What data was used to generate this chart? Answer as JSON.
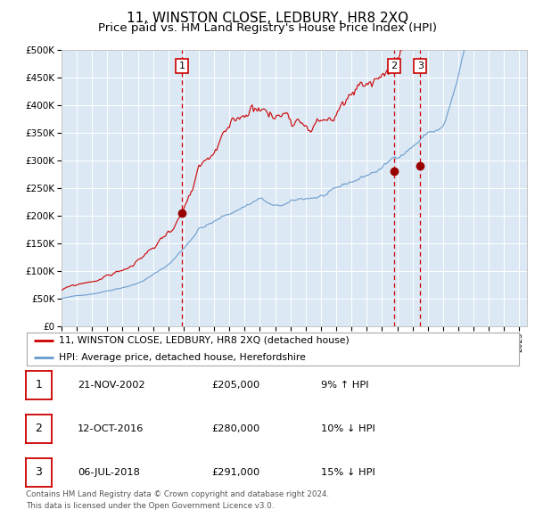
{
  "title": "11, WINSTON CLOSE, LEDBURY, HR8 2XQ",
  "subtitle": "Price paid vs. HM Land Registry's House Price Index (HPI)",
  "legend_line1": "11, WINSTON CLOSE, LEDBURY, HR8 2XQ (detached house)",
  "legend_line2": "HPI: Average price, detached house, Herefordshire",
  "footer1": "Contains HM Land Registry data © Crown copyright and database right 2024.",
  "footer2": "This data is licensed under the Open Government Licence v3.0.",
  "table": [
    {
      "num": "1",
      "date": "21-NOV-2002",
      "price": "£205,000",
      "hpi": "9% ↑ HPI"
    },
    {
      "num": "2",
      "date": "12-OCT-2016",
      "price": "£280,000",
      "hpi": "10% ↓ HPI"
    },
    {
      "num": "3",
      "date": "06-JUL-2018",
      "price": "£291,000",
      "hpi": "15% ↓ HPI"
    }
  ],
  "sale_dates_decimal": [
    2002.895,
    2016.784,
    2018.505
  ],
  "sale_prices": [
    205000,
    280000,
    291000
  ],
  "vline_dates": [
    2002.895,
    2016.784,
    2018.505
  ],
  "vline_labels": [
    "1",
    "2",
    "3"
  ],
  "ylim": [
    0,
    500000
  ],
  "yticks": [
    0,
    50000,
    100000,
    150000,
    200000,
    250000,
    300000,
    350000,
    400000,
    450000,
    500000
  ],
  "xlim_start": 1995.0,
  "xlim_end": 2025.5,
  "bg_color": "#dce9f5",
  "red_line_color": "#cc0000",
  "blue_line_color": "#6699cc",
  "sale_marker_color": "#990000",
  "vline_color": "#cc0000",
  "grid_color": "#ffffff",
  "title_fontsize": 11,
  "subtitle_fontsize": 9.5
}
